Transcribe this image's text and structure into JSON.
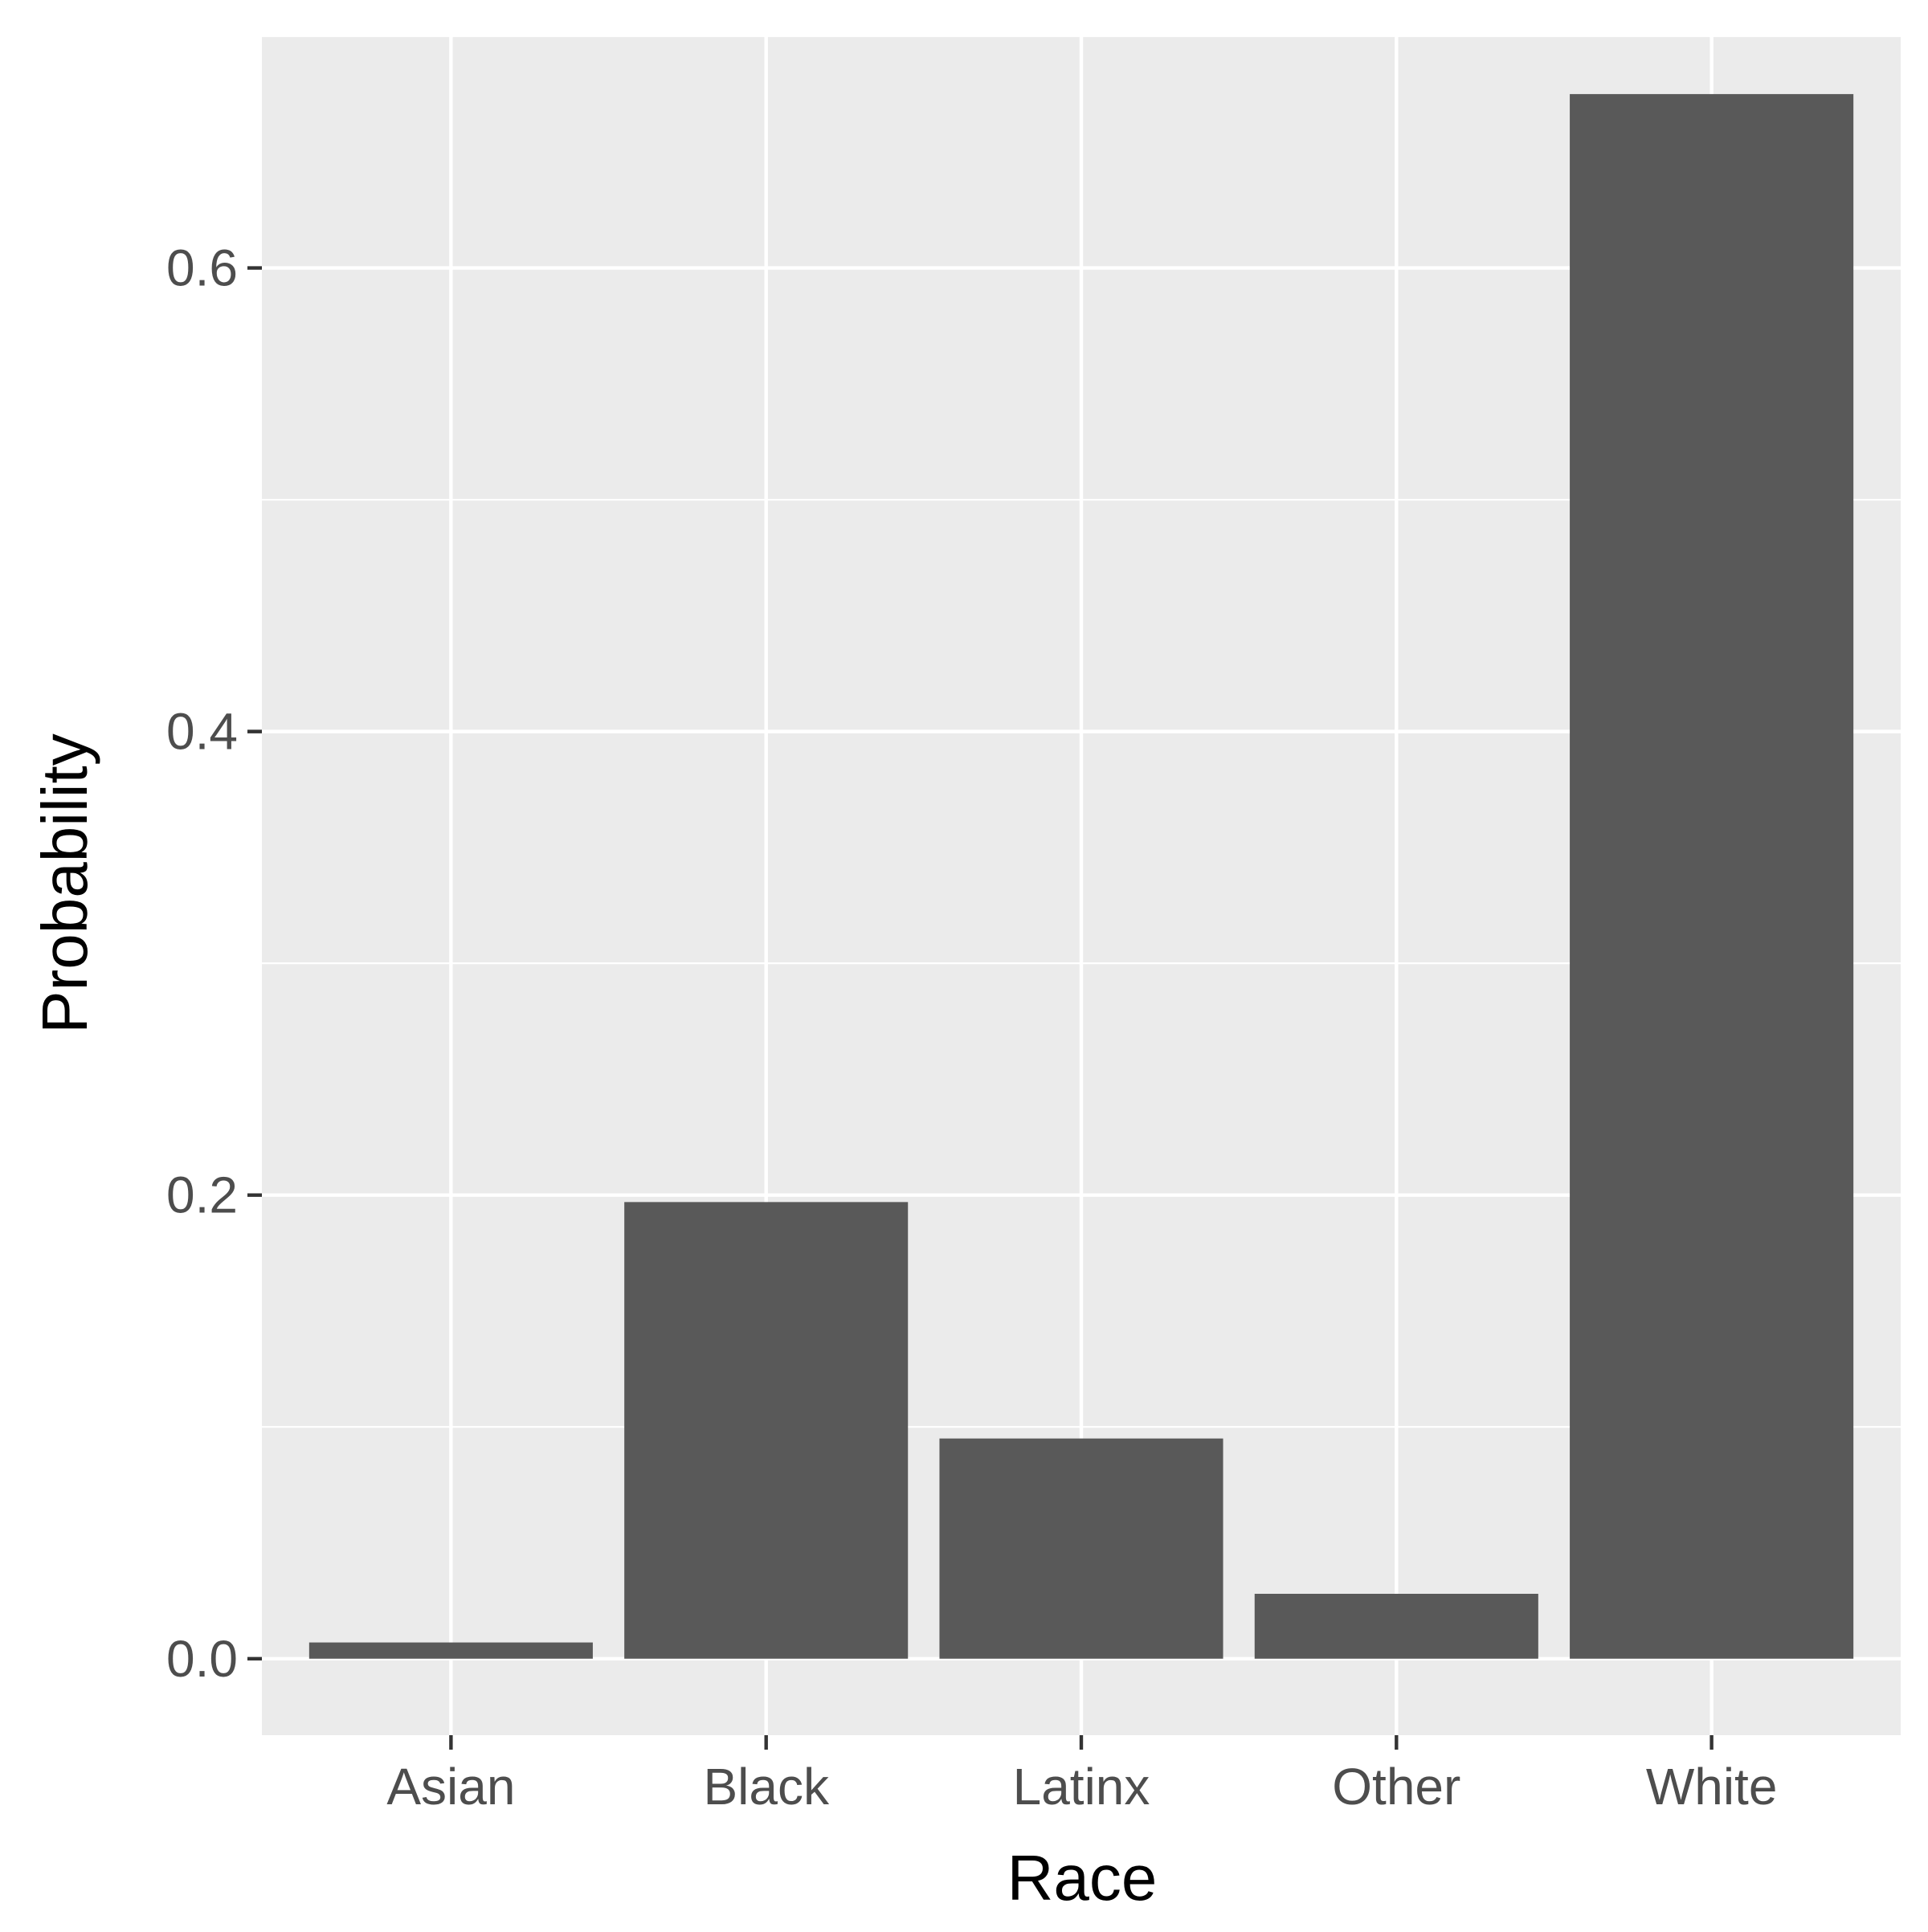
{
  "chart_data": {
    "type": "bar",
    "title": "",
    "xlabel": "Race",
    "ylabel": "Probability",
    "categories": [
      "Asian",
      "Black",
      "Latinx",
      "Other",
      "White"
    ],
    "values": [
      0.007,
      0.197,
      0.095,
      0.028,
      0.675
    ],
    "ylim": [
      -0.033,
      0.7
    ],
    "yticks": [
      0.0,
      0.2,
      0.4,
      0.6
    ],
    "ytick_labels": [
      "0.0",
      "0.2",
      "0.4",
      "0.6"
    ],
    "grid": true,
    "legend": "none",
    "colors": {
      "panel_background": "#EBEBEB",
      "grid": "#FFFFFF",
      "bar": "#595959",
      "tick_mark": "#333333",
      "tick_label": "#4D4D4D",
      "axis_title": "#000000"
    }
  }
}
